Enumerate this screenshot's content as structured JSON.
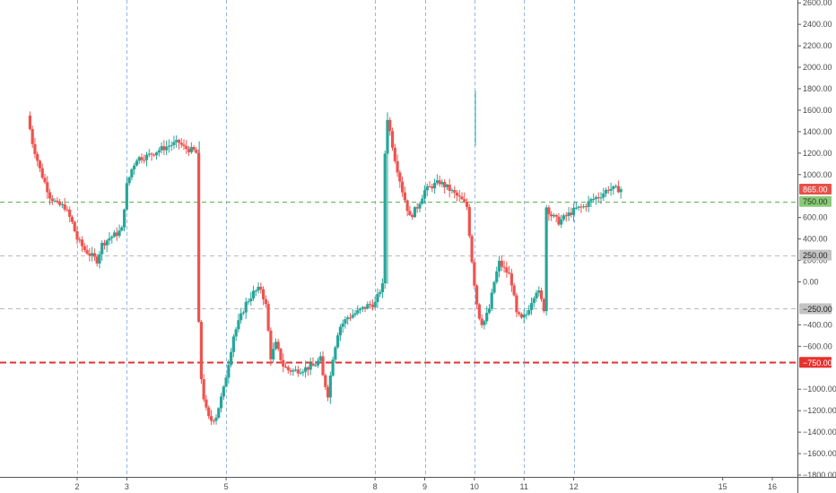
{
  "chart_data": {
    "type": "candlestick",
    "title": "",
    "xlabel": "",
    "ylabel": "",
    "ylim": [
      -1800,
      2650
    ],
    "xlim": [
      1.05,
      16.3
    ],
    "y_ticks": [
      {
        "value": 2600,
        "label": "2600.00"
      },
      {
        "value": 2400,
        "label": "2400.00"
      },
      {
        "value": 2200,
        "label": "2200.00"
      },
      {
        "value": 2000,
        "label": "2000.00"
      },
      {
        "value": 1800,
        "label": "1800.00"
      },
      {
        "value": 1600,
        "label": "1600.00"
      },
      {
        "value": 1400,
        "label": "1400.00"
      },
      {
        "value": 1200,
        "label": "1200.00"
      },
      {
        "value": 1000,
        "label": "1000.00"
      },
      {
        "value": 600,
        "label": "600.00"
      },
      {
        "value": 400,
        "label": "400.00"
      },
      {
        "value": 200,
        "label": "200.00"
      },
      {
        "value": 0,
        "label": "0.00"
      },
      {
        "value": -400,
        "label": "−400.00"
      },
      {
        "value": -600,
        "label": "−600.00"
      },
      {
        "value": -1000,
        "label": "−1000.00"
      },
      {
        "value": -1200,
        "label": "−1200.00"
      },
      {
        "value": -1400,
        "label": "−1400.00"
      },
      {
        "value": -1600,
        "label": "−1600.00"
      },
      {
        "value": -1800,
        "label": "−1800.00"
      }
    ],
    "x_ticks": [
      {
        "value": 2,
        "label": "2"
      },
      {
        "value": 3,
        "label": "3"
      },
      {
        "value": 5,
        "label": "5"
      },
      {
        "value": 8,
        "label": "8"
      },
      {
        "value": 9,
        "label": "9"
      },
      {
        "value": 10,
        "label": "10"
      },
      {
        "value": 11,
        "label": "11"
      },
      {
        "value": 12,
        "label": "12"
      },
      {
        "value": 15,
        "label": "15"
      },
      {
        "value": 16,
        "label": "16"
      }
    ],
    "session_lines": [
      2,
      3,
      5,
      8,
      9,
      10,
      11,
      12
    ],
    "reference_lines": [
      {
        "value": 750,
        "label": "750.00",
        "color": "#5bb450",
        "style": "dashed",
        "tag_bg": "#8cc97a",
        "tag_fg": "#1d3b13"
      },
      {
        "value": 250,
        "label": "250.00",
        "color": "#b8b8b8",
        "style": "dashed",
        "tag_bg": "#c3c3c3",
        "tag_fg": "#222222"
      },
      {
        "value": -250,
        "label": "−250.00",
        "color": "#b8b8b8",
        "style": "dashed",
        "tag_bg": "#c3c3c3",
        "tag_fg": "#222222"
      },
      {
        "value": -750,
        "label": "−750.00",
        "color": "#e0332f",
        "style": "dashed-bold",
        "tag_bg": "#e8312e",
        "tag_fg": "#ffffff"
      }
    ],
    "last_price": {
      "value": 865,
      "label": "865.00",
      "tag_bg": "#e8504a",
      "tag_fg": "#ffffff"
    },
    "colors": {
      "up": "#26a69a",
      "down": "#ef5350",
      "grid": "#7aa6e8"
    },
    "path": [
      [
        1.05,
        1550
      ],
      [
        1.15,
        1300
      ],
      [
        1.3,
        1050
      ],
      [
        1.5,
        800
      ],
      [
        1.65,
        720
      ],
      [
        1.8,
        700
      ],
      [
        1.95,
        550
      ],
      [
        2.05,
        400
      ],
      [
        2.2,
        300
      ],
      [
        2.45,
        200
      ],
      [
        2.55,
        350
      ],
      [
        2.7,
        410
      ],
      [
        2.85,
        450
      ],
      [
        2.98,
        500
      ],
      [
        3.0,
        700
      ],
      [
        3.05,
        900
      ],
      [
        3.15,
        1050
      ],
      [
        3.25,
        1150
      ],
      [
        3.45,
        1170
      ],
      [
        3.7,
        1230
      ],
      [
        3.95,
        1280
      ],
      [
        4.1,
        1300
      ],
      [
        4.2,
        1250
      ],
      [
        4.4,
        1220
      ],
      [
        4.45,
        1200
      ],
      [
        4.5,
        -400
      ],
      [
        4.55,
        -900
      ],
      [
        4.62,
        -1150
      ],
      [
        4.72,
        -1300
      ],
      [
        4.85,
        -1250
      ],
      [
        5.0,
        -1000
      ],
      [
        5.2,
        -500
      ],
      [
        5.45,
        -200
      ],
      [
        5.6,
        -100
      ],
      [
        5.75,
        -60
      ],
      [
        5.85,
        -220
      ],
      [
        5.95,
        -700
      ],
      [
        6.05,
        -580
      ],
      [
        6.2,
        -780
      ],
      [
        6.3,
        -820
      ],
      [
        6.42,
        -830
      ],
      [
        6.62,
        -810
      ],
      [
        6.82,
        -780
      ],
      [
        6.95,
        -720
      ],
      [
        7.0,
        -880
      ],
      [
        7.1,
        -1050
      ],
      [
        7.2,
        -700
      ],
      [
        7.32,
        -430
      ],
      [
        7.5,
        -330
      ],
      [
        7.7,
        -280
      ],
      [
        7.9,
        -220
      ],
      [
        8.05,
        -200
      ],
      [
        8.15,
        -80
      ],
      [
        8.22,
        -20
      ],
      [
        8.25,
        1200
      ],
      [
        8.28,
        1580
      ],
      [
        8.35,
        1400
      ],
      [
        8.45,
        1150
      ],
      [
        8.6,
        850
      ],
      [
        8.75,
        600
      ],
      [
        8.9,
        700
      ],
      [
        9.05,
        850
      ],
      [
        9.22,
        900
      ],
      [
        9.35,
        930
      ],
      [
        9.5,
        880
      ],
      [
        9.65,
        820
      ],
      [
        9.8,
        760
      ],
      [
        9.9,
        700
      ],
      [
        9.95,
        450
      ],
      [
        10.0,
        200
      ],
      [
        10.07,
        -100
      ],
      [
        10.13,
        -300
      ],
      [
        10.22,
        -400
      ],
      [
        10.35,
        -250
      ],
      [
        10.45,
        0
      ],
      [
        10.55,
        180
      ],
      [
        10.65,
        120
      ],
      [
        10.78,
        50
      ],
      [
        10.9,
        -300
      ],
      [
        11.0,
        -350
      ],
      [
        11.1,
        -300
      ],
      [
        11.22,
        -150
      ],
      [
        11.32,
        -60
      ],
      [
        11.45,
        -250
      ],
      [
        11.5,
        700
      ],
      [
        11.6,
        620
      ],
      [
        11.75,
        560
      ],
      [
        11.92,
        620
      ],
      [
        12.1,
        680
      ],
      [
        12.25,
        700
      ],
      [
        12.4,
        760
      ],
      [
        12.6,
        810
      ],
      [
        12.75,
        870
      ],
      [
        12.85,
        865
      ]
    ]
  }
}
